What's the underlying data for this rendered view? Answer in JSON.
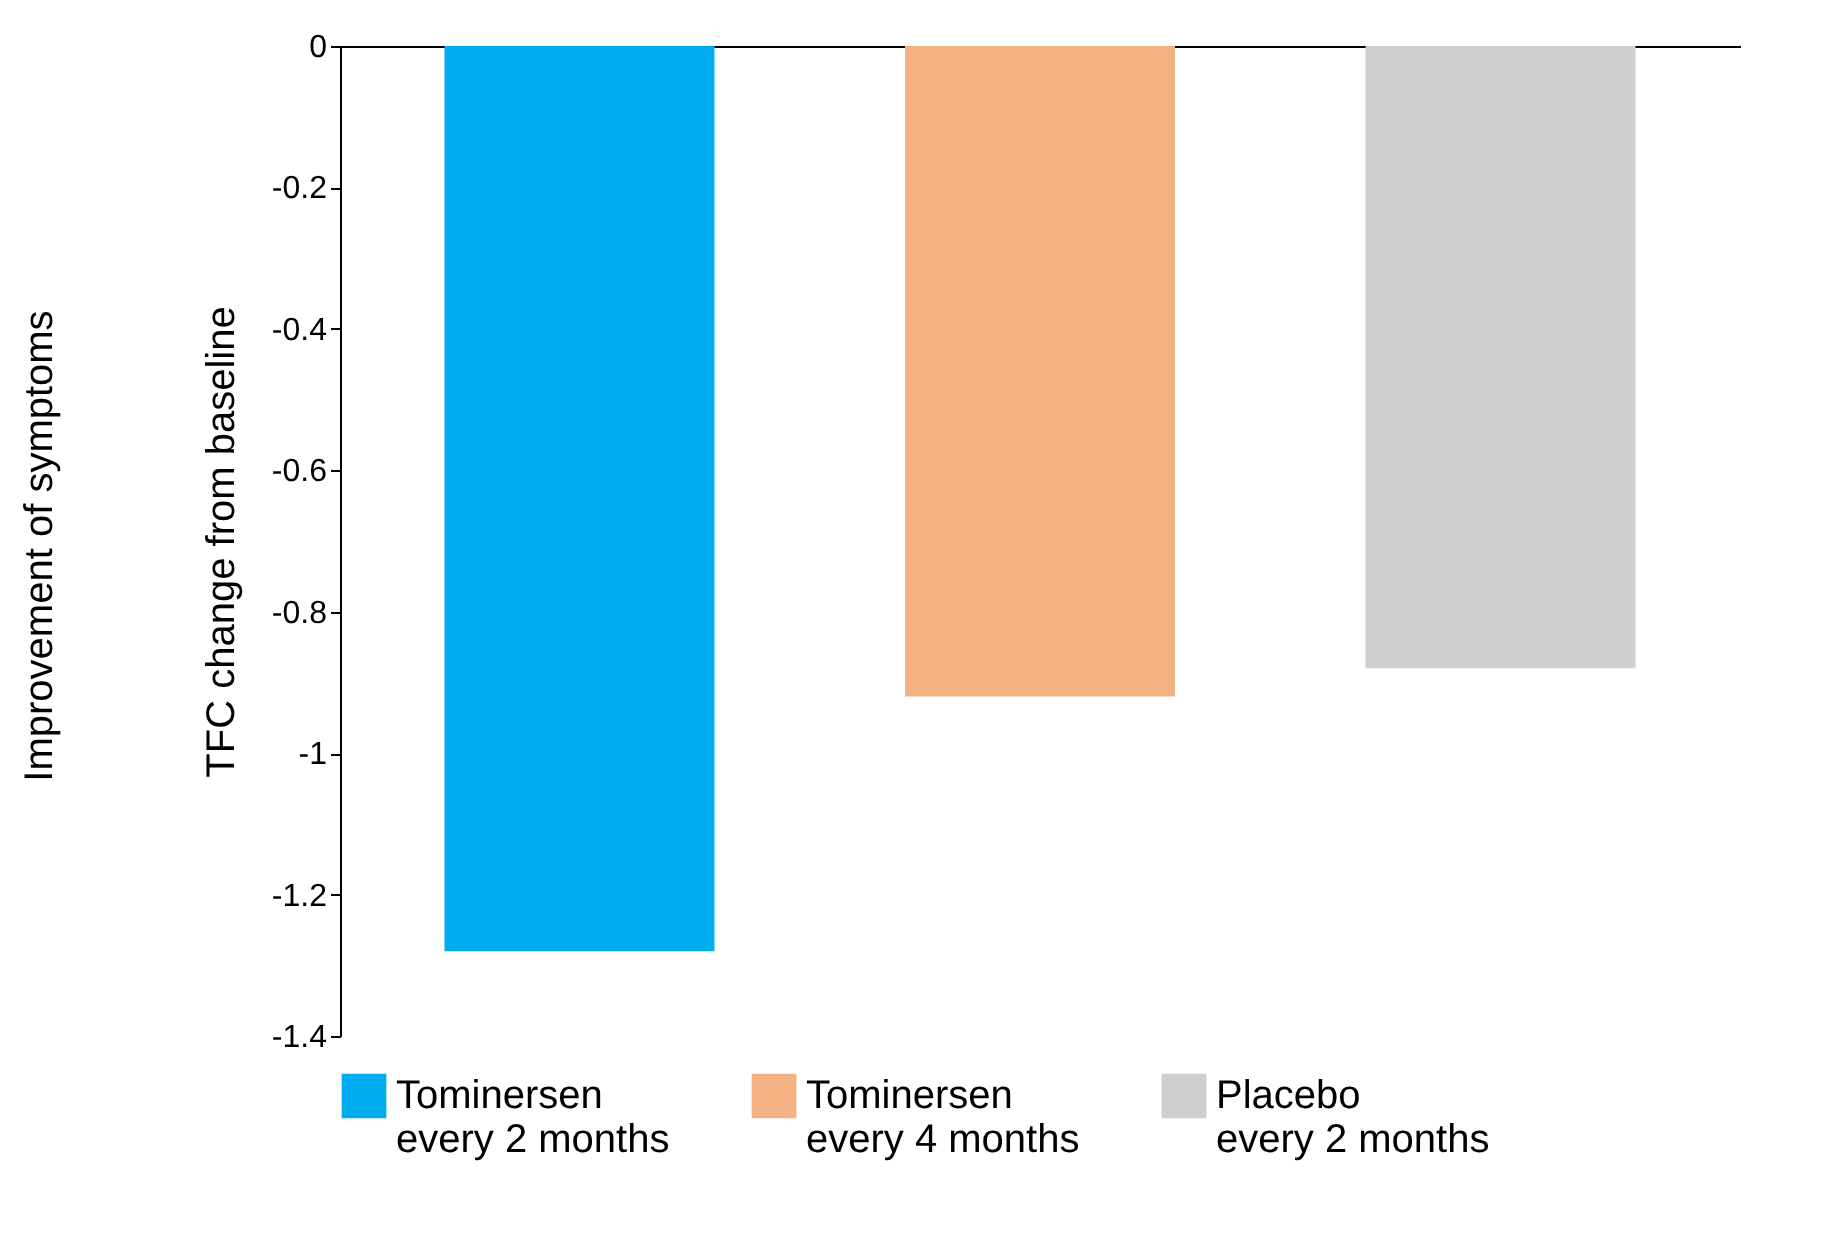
{
  "chart_data": {
    "type": "bar",
    "ylabel": "TFC change from baseline",
    "annotations": [
      "Improvement of symptoms"
    ],
    "categories": [
      null,
      null,
      null
    ],
    "series": [
      {
        "name": "Tominersen\nevery 2 months",
        "color": "#00aeef",
        "values": [
          -1.28,
          null,
          null
        ]
      },
      {
        "name": "Tominersen\nevery 4 months",
        "color": "#f4b183",
        "values": [
          null,
          -0.92,
          null
        ]
      },
      {
        "name": "Placebo\nevery 2 months",
        "color": "#d0cece",
        "values": [
          null,
          null,
          -0.88
        ]
      }
    ],
    "ylim": [
      -1.4,
      0
    ],
    "yticks": [
      0,
      -0.2,
      -0.4,
      -0.6,
      -0.8,
      -1,
      -1.2,
      -1.4
    ],
    "grid": false,
    "legend": "bottom",
    "tick_labels": "y"
  }
}
